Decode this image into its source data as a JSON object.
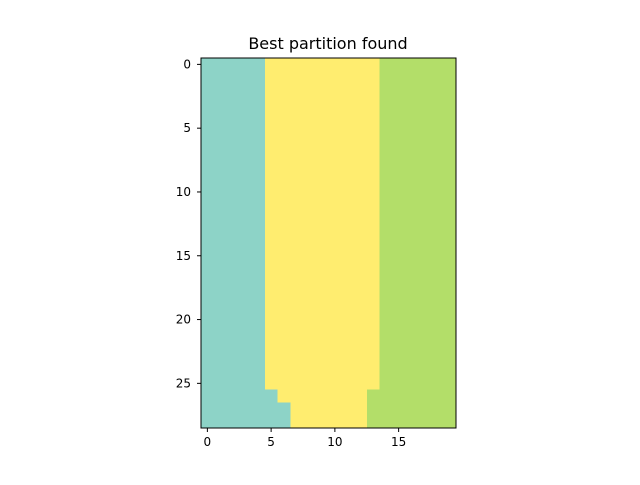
{
  "chart_data": {
    "type": "heatmap",
    "title": "Best partition found",
    "xlabel": "",
    "ylabel": "",
    "x_ticks": [
      0,
      5,
      10,
      15
    ],
    "y_ticks": [
      0,
      5,
      10,
      15,
      20,
      25
    ],
    "n_cols": 20,
    "n_rows": 29,
    "x_range": [
      -0.5,
      19.5
    ],
    "y_range": [
      -0.5,
      28.5
    ],
    "y_axis_inverted": true,
    "grid": false,
    "legend": "none",
    "colors": {
      "cluster_0": "#8dd3c7",
      "cluster_1": "#ffed6f",
      "cluster_2": "#b3de69"
    },
    "rows": [
      "00000111111111222222",
      "00000111111111222222",
      "00000111111111222222",
      "00000111111111222222",
      "00000111111111222222",
      "00000111111111222222",
      "00000111111111222222",
      "00000111111111222222",
      "00000111111111222222",
      "00000111111111222222",
      "00000111111111222222",
      "00000111111111222222",
      "00000111111111222222",
      "00000111111111222222",
      "00000111111111222222",
      "00000111111111222222",
      "00000111111111222222",
      "00000111111111222222",
      "00000111111111222222",
      "00000111111111222222",
      "00000111111111222222",
      "00000111111111222222",
      "00000111111111222222",
      "00000111111111222222",
      "00000111111111222222",
      "00000111111111222222",
      "00000011111112222222",
      "00000001111112222222",
      "00000001111112222222"
    ]
  }
}
